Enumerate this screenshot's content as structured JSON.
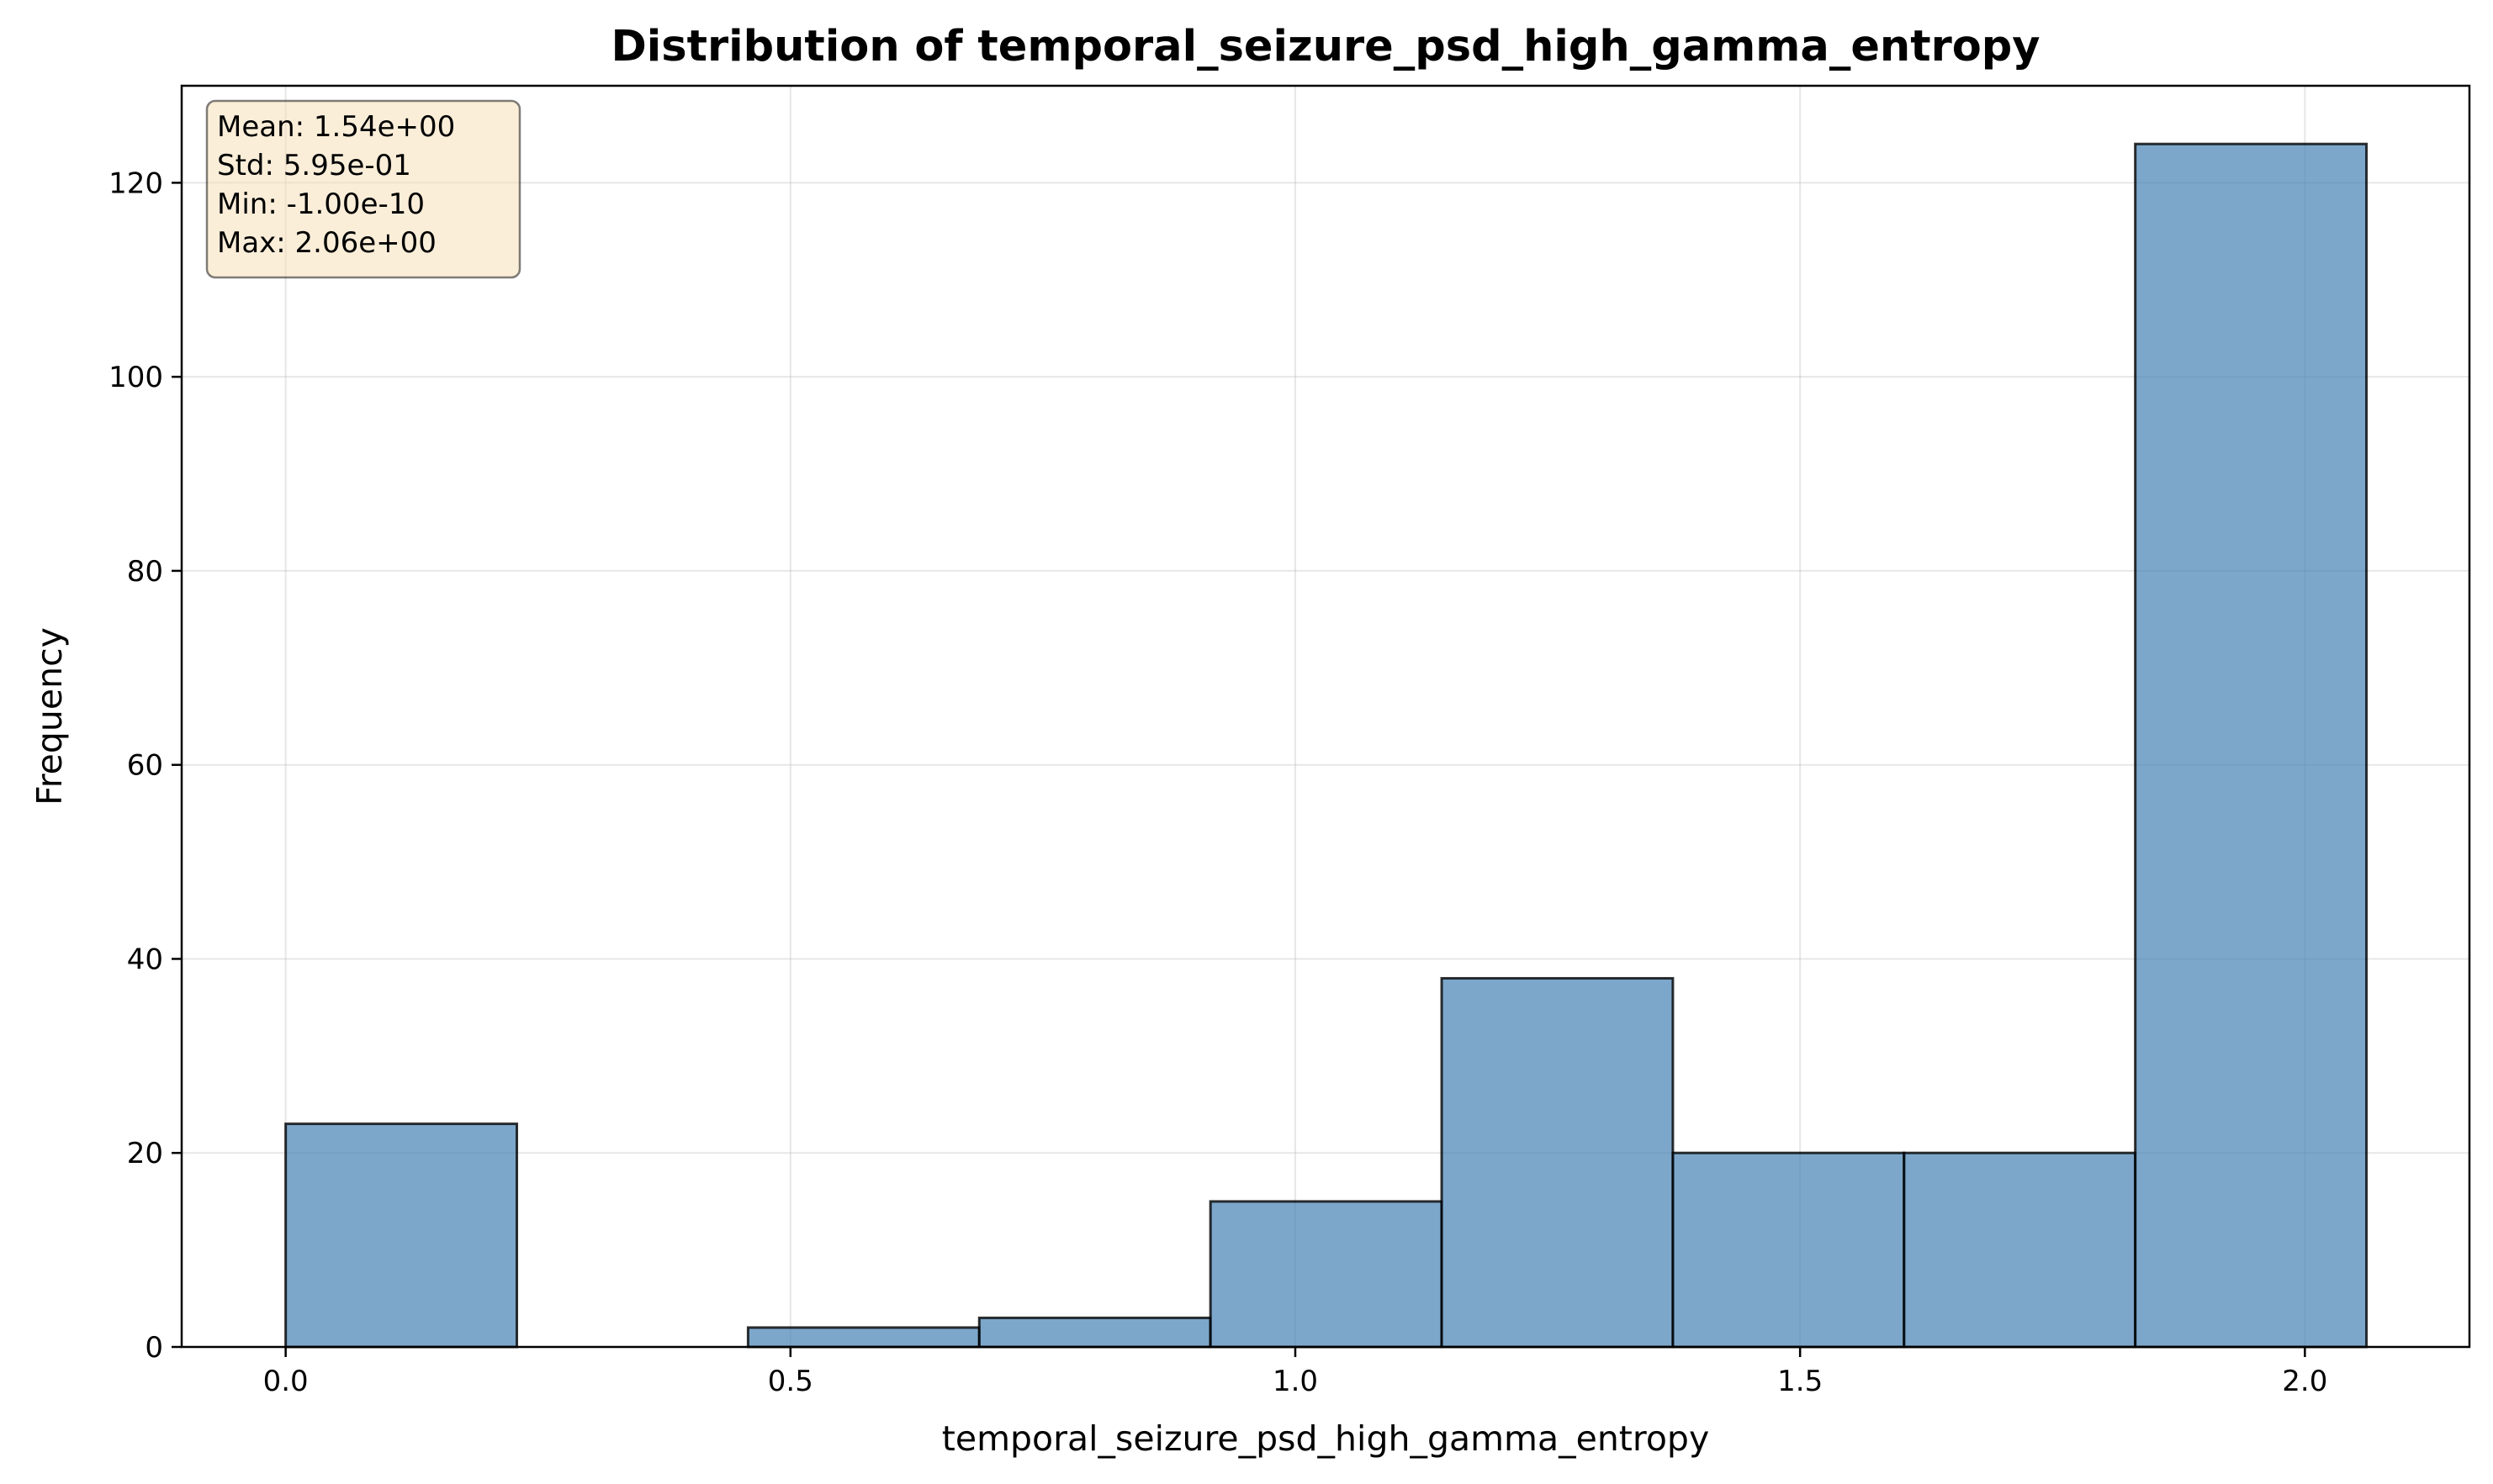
{
  "chart_data": {
    "type": "bar",
    "title": "Distribution of temporal_seizure_psd_high_gamma_entropy",
    "xlabel": "temporal_seizure_psd_high_gamma_entropy",
    "ylabel": "Frequency",
    "xlim": [
      -0.103,
      2.163
    ],
    "ylim": [
      0,
      130
    ],
    "x_ticks": [
      0.0,
      0.5,
      1.0,
      1.5,
      2.0
    ],
    "x_tick_labels": [
      "0.0",
      "0.5",
      "1.0",
      "1.5",
      "2.0"
    ],
    "y_ticks": [
      0,
      20,
      40,
      60,
      80,
      100,
      120
    ],
    "y_tick_labels": [
      "0",
      "20",
      "40",
      "60",
      "80",
      "100",
      "120"
    ],
    "bin_edges": [
      0.0,
      0.229,
      0.458,
      0.687,
      0.916,
      1.145,
      1.374,
      1.603,
      1.832,
      2.061
    ],
    "values": [
      23,
      0,
      2,
      3,
      15,
      38,
      20,
      20,
      124
    ],
    "grid": true,
    "bar_color": "#4682b4",
    "stats_box": {
      "placement": "top-left",
      "color": "#f5deb3",
      "lines": [
        "Mean: 1.54e+00",
        "Std: 5.95e-01",
        "Min: -1.00e-10",
        "Max: 2.06e+00"
      ]
    }
  }
}
